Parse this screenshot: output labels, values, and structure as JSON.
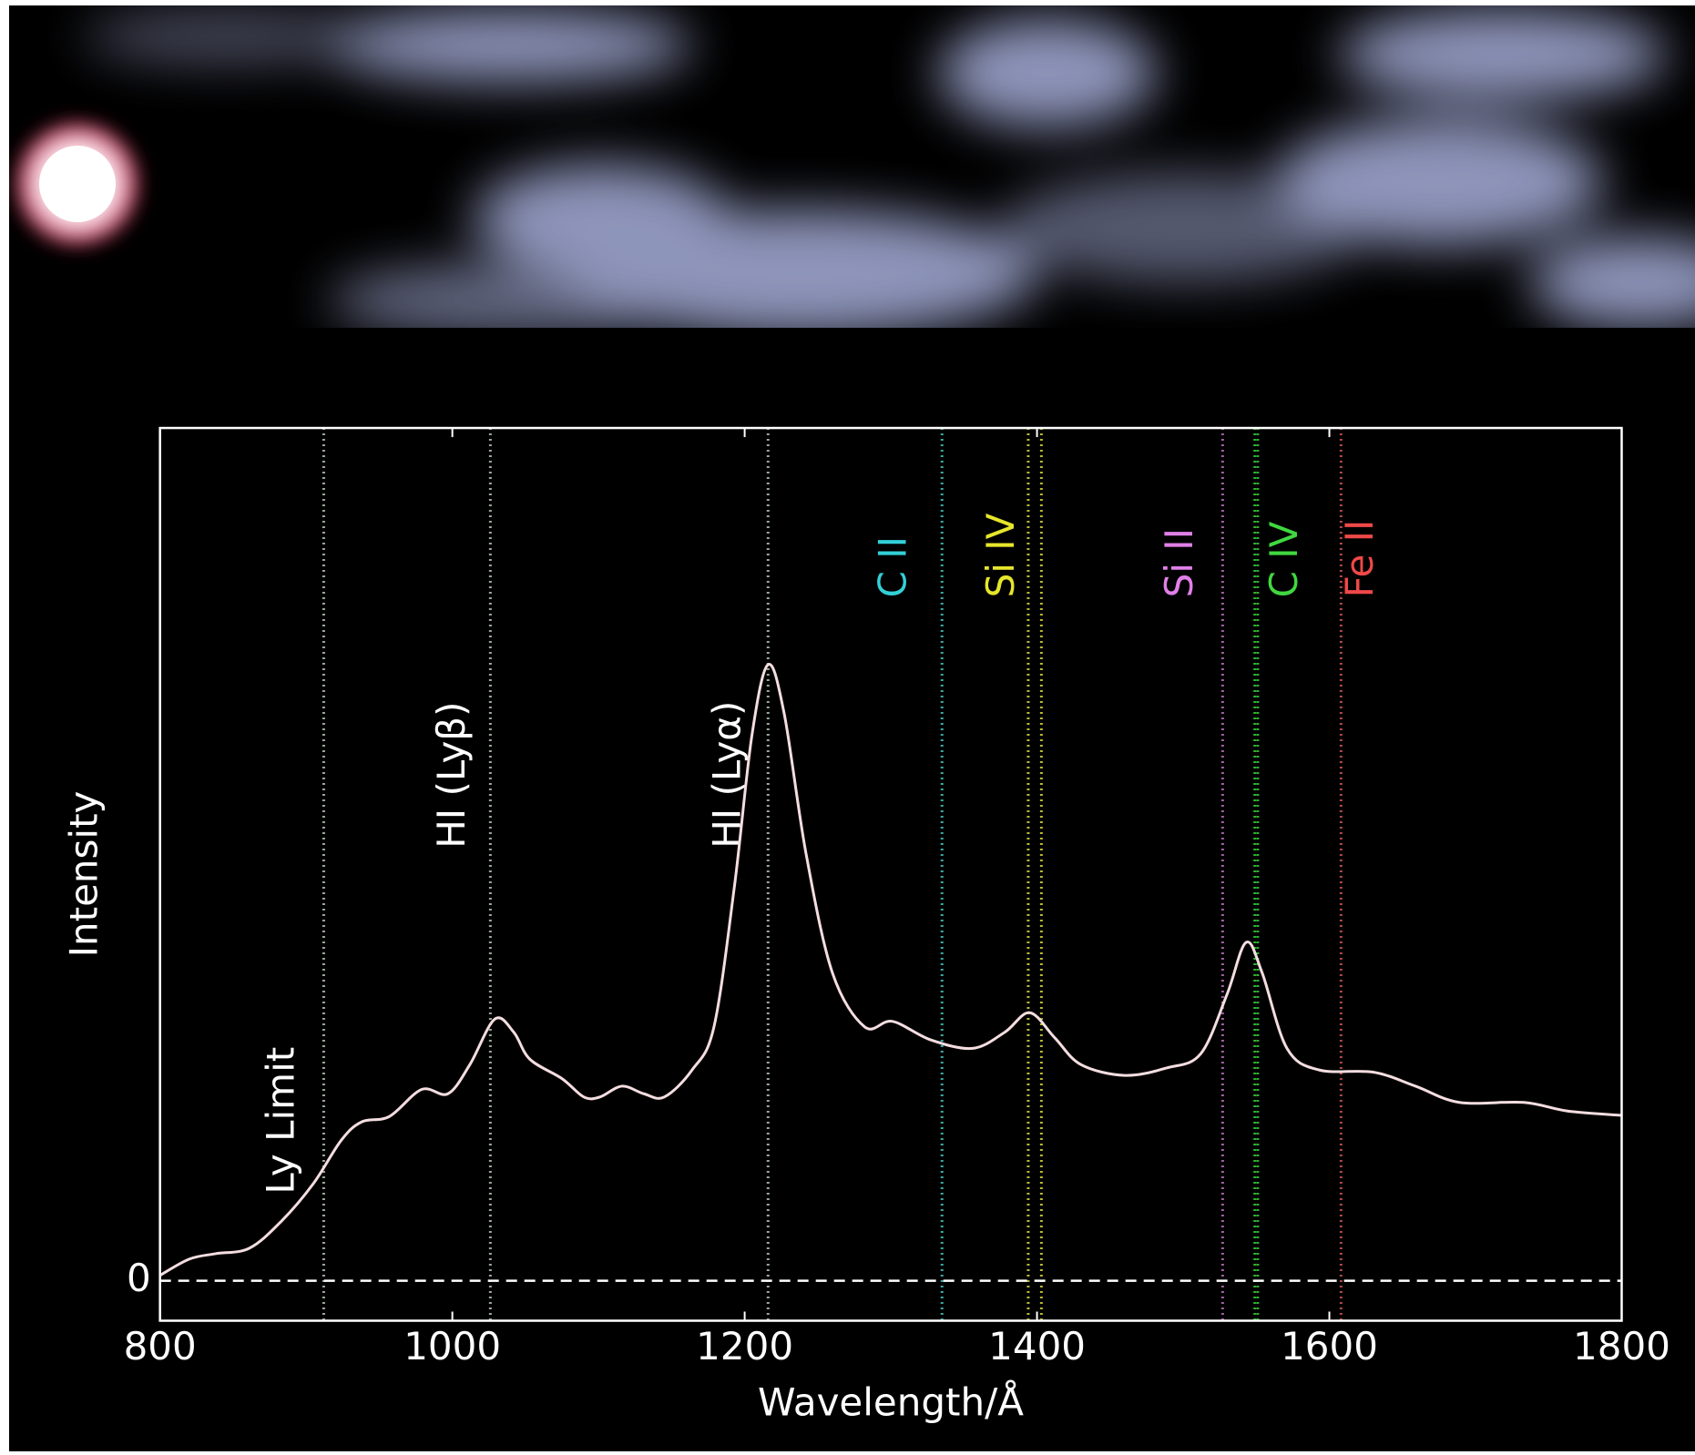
{
  "chart_data": {
    "type": "line",
    "x_label": "Wavelength/Å",
    "y_label": "Intensity",
    "xlim": [
      800,
      1800
    ],
    "xticks": [
      800,
      1000,
      1200,
      1400,
      1600,
      1800
    ],
    "ylim": [
      -0.37,
      7.89
    ],
    "yticks": [
      0
    ],
    "series": [
      {
        "color": "#f4dde0",
        "x": [
          800,
          820,
          838,
          861,
          883,
          905,
          924,
          938,
          957,
          979,
          997,
          1012,
          1029,
          1042,
          1053,
          1075,
          1090,
          1101,
          1116,
          1131,
          1145,
          1164,
          1179,
          1193,
          1205,
          1216,
          1227,
          1242,
          1260,
          1282,
          1301,
          1327,
          1356,
          1378,
          1395,
          1412,
          1430,
          1460,
          1489,
          1512,
          1530,
          1543,
          1554,
          1571,
          1593,
          1630,
          1659,
          1689,
          1733,
          1763,
          1800
        ],
        "values": [
          0.05,
          0.2,
          0.25,
          0.3,
          0.55,
          0.9,
          1.3,
          1.47,
          1.52,
          1.77,
          1.73,
          2.0,
          2.42,
          2.3,
          2.05,
          1.87,
          1.7,
          1.7,
          1.8,
          1.73,
          1.7,
          1.95,
          2.35,
          3.65,
          5.05,
          5.7,
          5.25,
          3.95,
          2.85,
          2.35,
          2.4,
          2.23,
          2.15,
          2.3,
          2.48,
          2.25,
          2.0,
          1.9,
          1.97,
          2.1,
          2.65,
          3.13,
          2.85,
          2.15,
          1.95,
          1.93,
          1.8,
          1.65,
          1.65,
          1.57,
          1.53
        ]
      }
    ],
    "lines": [
      {
        "label": "Ly Limit",
        "x": [
          912
        ],
        "color": "#9aa89a",
        "label_color": "#ffffff"
      },
      {
        "label": "HI (Lyβ)",
        "x": [
          1026
        ],
        "color": "#9aa89a",
        "label_color": "#ffffff"
      },
      {
        "label": "HI (Lyα)",
        "x": [
          1216
        ],
        "color": "#9aa89a",
        "label_color": "#ffffff"
      },
      {
        "label": "C II",
        "x": [
          1335
        ],
        "color": "#3aa8a0",
        "label_color": "#33d0d8"
      },
      {
        "label": "Si IV",
        "x": [
          1394,
          1403
        ],
        "color": "#b8b830",
        "label_color": "#e6e62c"
      },
      {
        "label": "Si II",
        "x": [
          1527
        ],
        "color": "#a060a0",
        "label_color": "#e080e8"
      },
      {
        "label": "C IV",
        "x": [
          1549,
          1551
        ],
        "color": "#30b030",
        "label_color": "#40d840"
      },
      {
        "label": "Fe II",
        "x": [
          1608
        ],
        "color": "#b04848",
        "label_color": "#f04848"
      }
    ]
  }
}
